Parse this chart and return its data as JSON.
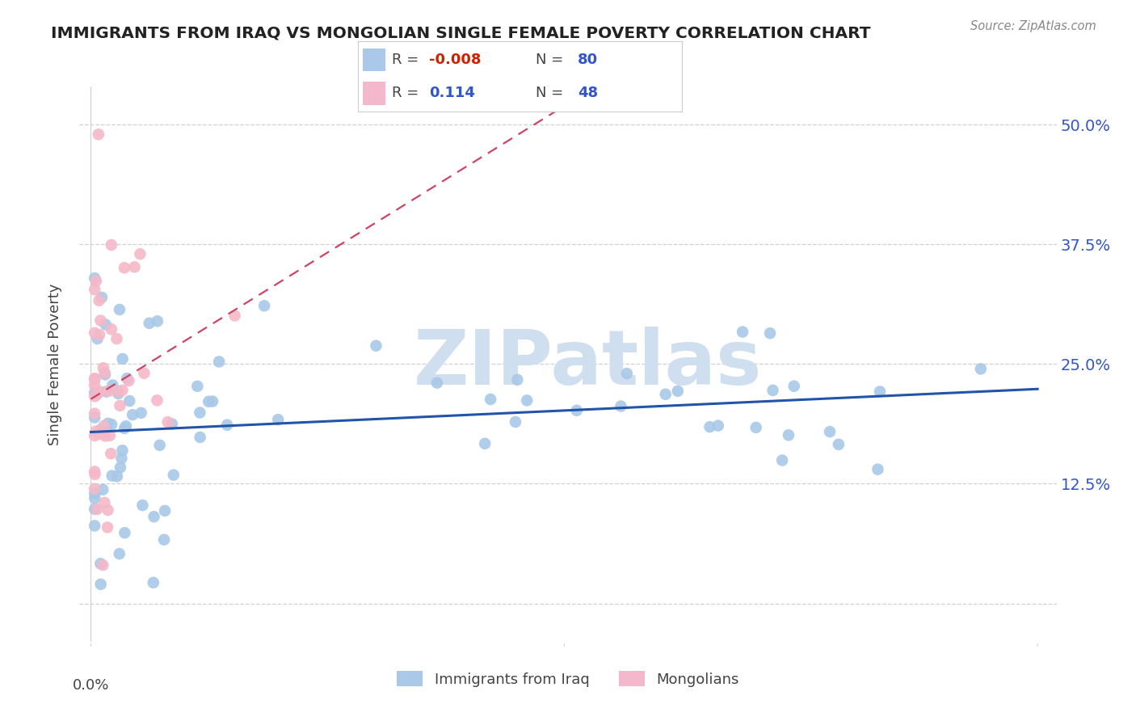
{
  "title": "IMMIGRANTS FROM IRAQ VS MONGOLIAN SINGLE FEMALE POVERTY CORRELATION CHART",
  "source": "Source: ZipAtlas.com",
  "ylabel": "Single Female Poverty",
  "blue_R": "-0.008",
  "blue_N": "80",
  "pink_R": "0.114",
  "pink_N": "48",
  "blue_color": "#a8c8e8",
  "pink_color": "#f4b8c8",
  "blue_line_color": "#2255aa",
  "pink_line_color": "#cc4466",
  "blue_legend_color": "#aac8e8",
  "pink_legend_color": "#f4b8cc",
  "watermark": "ZIPatlas",
  "watermark_color": "#d0dff0",
  "r_neg_color": "#cc2200",
  "r_pos_color": "#3355cc",
  "n_color": "#3355cc",
  "label_color": "#3355cc",
  "text_color": "#444444",
  "grid_color": "#d0d0d0",
  "xlim": [
    0.0,
    0.25
  ],
  "ylim": [
    0.0,
    0.5
  ],
  "y_ticks": [
    0.0,
    0.125,
    0.25,
    0.375,
    0.5
  ],
  "y_tick_labels": [
    "",
    "12.5%",
    "25.0%",
    "37.5%",
    "50.0%"
  ]
}
